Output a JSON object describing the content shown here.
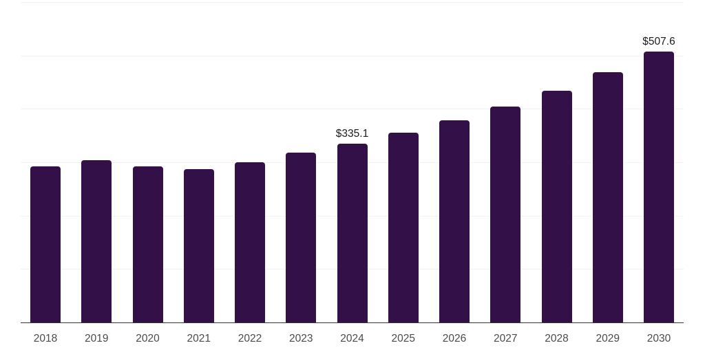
{
  "chart_data": {
    "type": "bar",
    "title": "",
    "xlabel": "",
    "ylabel": "",
    "ylim": [
      0,
      600
    ],
    "gridline_values": [
      100,
      200,
      300,
      400,
      500,
      600
    ],
    "grid": true,
    "legend": false,
    "categories": [
      "2018",
      "2019",
      "2020",
      "2021",
      "2022",
      "2023",
      "2024",
      "2025",
      "2026",
      "2027",
      "2028",
      "2029",
      "2030"
    ],
    "values": [
      292,
      304,
      292,
      287,
      300,
      318,
      335.1,
      356,
      379,
      404,
      434,
      469,
      507.6
    ],
    "points": [
      {
        "year": "2018",
        "value": 292,
        "label": ""
      },
      {
        "year": "2019",
        "value": 304,
        "label": ""
      },
      {
        "year": "2020",
        "value": 292,
        "label": ""
      },
      {
        "year": "2021",
        "value": 287,
        "label": ""
      },
      {
        "year": "2022",
        "value": 300,
        "label": ""
      },
      {
        "year": "2023",
        "value": 318,
        "label": ""
      },
      {
        "year": "2024",
        "value": 335.1,
        "label": "$335.1"
      },
      {
        "year": "2025",
        "value": 356,
        "label": ""
      },
      {
        "year": "2026",
        "value": 379,
        "label": ""
      },
      {
        "year": "2027",
        "value": 404,
        "label": ""
      },
      {
        "year": "2028",
        "value": 434,
        "label": ""
      },
      {
        "year": "2029",
        "value": 469,
        "label": ""
      },
      {
        "year": "2030",
        "value": 507.6,
        "label": "$507.6"
      }
    ],
    "colors": {
      "bar": "#331148",
      "gridline": "#f2f2f2",
      "axis_line": "#333333",
      "value_label": "#1a1a1a",
      "tick_label": "#4a4a4a",
      "background": "#ffffff"
    }
  }
}
